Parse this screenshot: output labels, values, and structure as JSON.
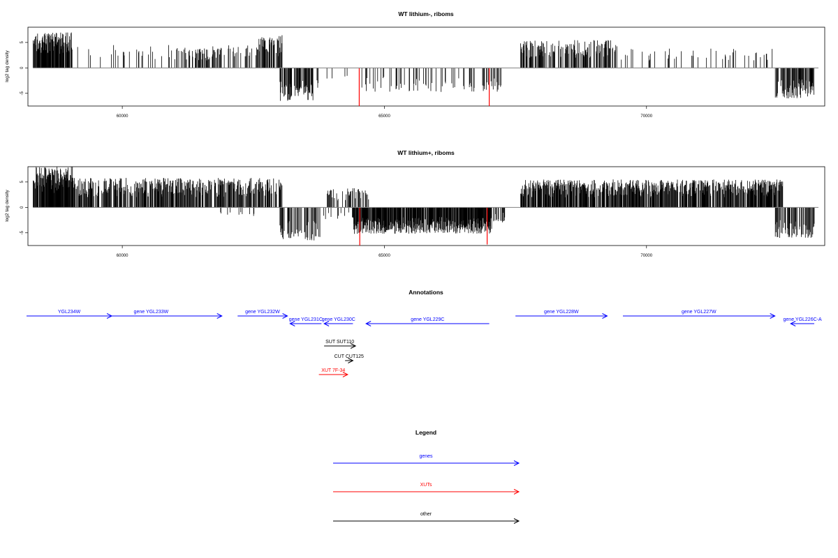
{
  "colors": {
    "bars": "#000000",
    "highlight_bars": "#ff0000",
    "zero_line": "#808080",
    "genes": "#0000ff",
    "xuts": "#ff0000",
    "other": "#000000"
  },
  "chart_data": [
    {
      "type": "bar",
      "title": "WT lithium-, riboms",
      "ylabel": "log2 tag density",
      "xlim": [
        58200,
        73400
      ],
      "ylim": [
        -7.5,
        8
      ],
      "x_ticks": [
        60000,
        65000,
        70000
      ],
      "y_ticks": [
        -5,
        0,
        5
      ],
      "grid": false,
      "data_range": [
        58300,
        73200
      ],
      "positive_regions": [
        {
          "start": 58300,
          "end": 59050,
          "max": 7.0,
          "density": 0.9
        },
        {
          "start": 59050,
          "end": 61000,
          "max": 4.5,
          "density": 0.12
        },
        {
          "start": 61000,
          "end": 61700,
          "max": 4.0,
          "density": 0.3
        },
        {
          "start": 61700,
          "end": 62600,
          "max": 4.5,
          "density": 0.3
        },
        {
          "start": 62600,
          "end": 63050,
          "max": 6.5,
          "density": 0.55
        },
        {
          "start": 64200,
          "end": 64350,
          "max": 2.5,
          "density": 0.05
        },
        {
          "start": 67600,
          "end": 69450,
          "max": 5.5,
          "density": 0.55
        },
        {
          "start": 69450,
          "end": 72500,
          "max": 3.8,
          "density": 0.12
        }
      ],
      "negative_regions": [
        {
          "start": 63000,
          "end": 63750,
          "min": -6.5,
          "density": 0.45
        },
        {
          "start": 63750,
          "end": 64500,
          "min": -2.5,
          "density": 0.06
        },
        {
          "start": 64500,
          "end": 67250,
          "min": -4.8,
          "density": 0.18
        },
        {
          "start": 72450,
          "end": 73200,
          "min": -6.0,
          "density": 0.6
        }
      ],
      "highlight_bars": [
        {
          "x": 64520,
          "value": -7.5
        },
        {
          "x": 67000,
          "value": -7.5
        }
      ]
    },
    {
      "type": "bar",
      "title": "WT lithium+, riboms",
      "ylabel": "log2 tag density",
      "xlim": [
        58200,
        73400
      ],
      "ylim": [
        -7.5,
        8
      ],
      "x_ticks": [
        60000,
        65000,
        70000
      ],
      "y_ticks": [
        -5,
        0,
        5
      ],
      "grid": false,
      "data_range": [
        58300,
        73200
      ],
      "positive_regions": [
        {
          "start": 58300,
          "end": 59050,
          "max": 8.0,
          "density": 0.9
        },
        {
          "start": 59050,
          "end": 63050,
          "max": 5.8,
          "density": 0.6
        },
        {
          "start": 63900,
          "end": 64700,
          "max": 3.8,
          "density": 0.3
        },
        {
          "start": 67600,
          "end": 72600,
          "max": 5.5,
          "density": 0.75
        }
      ],
      "negative_regions": [
        {
          "start": 61700,
          "end": 62600,
          "min": -2.0,
          "density": 0.08
        },
        {
          "start": 63000,
          "end": 63800,
          "min": -6.5,
          "density": 0.5
        },
        {
          "start": 63800,
          "end": 64400,
          "min": -2.5,
          "density": 0.1
        },
        {
          "start": 64400,
          "end": 67050,
          "min": -5.2,
          "density": 0.85
        },
        {
          "start": 67050,
          "end": 67300,
          "min": -3.0,
          "density": 0.5
        },
        {
          "start": 72450,
          "end": 73200,
          "min": -6.0,
          "density": 0.6
        }
      ],
      "highlight_bars": [
        {
          "x": 64530,
          "value": -7.5
        },
        {
          "x": 66960,
          "value": -7.3
        }
      ]
    }
  ],
  "annotations": {
    "title": "Annotations",
    "features": [
      {
        "label": "YGL234W",
        "start": 57400,
        "end": 59800,
        "strand": "+",
        "row": 0,
        "class": "genes"
      },
      {
        "label": "gene YGL233W",
        "start": 59200,
        "end": 61900,
        "strand": "+",
        "row": 0,
        "class": "genes"
      },
      {
        "label": "gene YGL232W",
        "start": 62200,
        "end": 63150,
        "strand": "+",
        "row": 0,
        "class": "genes"
      },
      {
        "label": "gene YGL231C",
        "start": 63200,
        "end": 63800,
        "strand": "-",
        "row": 1,
        "class": "genes"
      },
      {
        "label": "gene YGL230C",
        "start": 63850,
        "end": 64400,
        "strand": "-",
        "row": 1,
        "class": "genes"
      },
      {
        "label": "gene YGL229C",
        "start": 64650,
        "end": 67000,
        "strand": "-",
        "row": 1,
        "class": "genes"
      },
      {
        "label": "gene YGL228W",
        "start": 67500,
        "end": 69250,
        "strand": "+",
        "row": 0,
        "class": "genes"
      },
      {
        "label": "gene YGL227W",
        "start": 69550,
        "end": 72450,
        "strand": "+",
        "row": 0,
        "class": "genes"
      },
      {
        "label": "gene YGL226C-A",
        "start": 72750,
        "end": 73200,
        "strand": "-",
        "row": 1,
        "class": "genes"
      },
      {
        "label": "SUT SUT110",
        "start": 63850,
        "end": 64450,
        "strand": "+",
        "row": 2,
        "class": "other"
      },
      {
        "label": "CUT CUT125",
        "start": 64250,
        "end": 64400,
        "strand": "+",
        "row": 3,
        "class": "other"
      },
      {
        "label": "XUT 7F-34",
        "start": 63750,
        "end": 64300,
        "strand": "+",
        "row": 4,
        "class": "xuts"
      }
    ]
  },
  "legend": {
    "title": "Legend",
    "items": [
      {
        "label": "genes",
        "class": "genes"
      },
      {
        "label": "XUTs",
        "class": "xuts"
      },
      {
        "label": "other",
        "class": "other"
      }
    ]
  }
}
